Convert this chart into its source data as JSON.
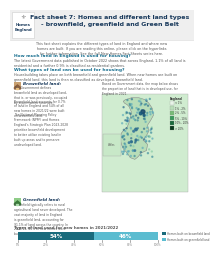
{
  "title_line1": "Fact sheet 7: Homes and different land types",
  "title_line2": "- brownfield, greenfield and Green Belt",
  "bg_color": "#ffffff",
  "header_bg": "#efefef",
  "teal_dark": "#1a6b7c",
  "teal_light": "#5bbcd0",
  "section_heading_color": "#1a7090",
  "body_text_color": "#555555",
  "link_color": "#1a6b7c",
  "bar_brownfield": 0.54,
  "bar_greenfield": 0.46,
  "bar_label_brownfield": "54%",
  "bar_label_greenfield": "46%",
  "bar_title": "Types of land used for new homes in 2021/2022",
  "legend_brownfield": "Homes built on brownfield land",
  "legend_greenfield": "Homes built on greenfield land",
  "intro_text": "This fact sheet explains the different types of land in England and where new\nhomes are built. If you are reading this online, please click on the hyperlinks\nfor further information. See the full New Homes Fact Sheets series here.",
  "q1": "How much land in England is used for housing?",
  "q1_body": "The latest Government data published in October 2022 shows that across England, 1.1% of all land is\nresidential and a further 0.9% is classified as residential gardens.",
  "q2": "What types of land can be used for housing?",
  "q2_body": "Housebuilding takes place on both brownfield and greenfield land. When new homes are built on\ngreenfield land, this land is then re-classified as developed, brownfield land.",
  "brownfield_heading": "Brownfield land:",
  "brownfield_body1": "The Government defines\nbrownfield land as developed land,\nthat is, or was previously, occupied\nby a permanent structure.",
  "brownfield_body2": "Brownfield land accounts for 0.7%\nof land in England and 54% of all\nnew homes in 2021/22 were built\non brownfield land.",
  "brownfield_body3": "The National Planning Policy\nFramework (NPPF) and Homes\nEngland's Strategic Plan 2023-2028\nprioritise brownfield development\nto better utilise existing land in\nbuilt up areas and to preserve\nundeveloped land.",
  "greenfield_heading": "Greenfield land:",
  "greenfield_body": "Greenfield typically refers to rural\nagricultural land never developed. The\nvast majority of land in England\nis greenfield land, accounting for\n91.1% of land across the country. In\n2021/22, 46% of new homes were\nbuilt on greenfield land.",
  "map_caption": "Based on Government data, the map below shows\nthe proportion of land that is in developed use, for\nEngland in 2021.",
  "axis_ticks": [
    "0%",
    "20%",
    "40%",
    "60%",
    "80%",
    "100%"
  ],
  "map_legend": [
    [
      "< 1%",
      "#e8f4e8"
    ],
    [
      "1% - 2%",
      "#b8ddb8"
    ],
    [
      "2% - 5%",
      "#78bc78"
    ],
    [
      "5% - 10%",
      "#3a9a5c"
    ],
    [
      "10% - 20%",
      "#1a6b3c"
    ],
    [
      "> 20%",
      "#0a3a1c"
    ]
  ],
  "logo_border_color": "#cccccc",
  "logo_text_color": "#1a3a5c",
  "title_color": "#1a3a5c",
  "header_line_color": "#dddddd"
}
